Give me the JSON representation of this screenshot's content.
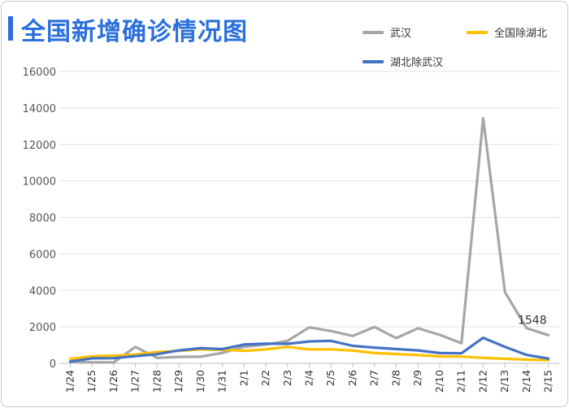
{
  "colors": {
    "title": "#2a6fdb",
    "wuhan": "#a6a6a6",
    "national_ex_hubei": "#ffc000",
    "hubei_ex_wuhan": "#4472c4"
  },
  "chart_data": {
    "type": "line",
    "title": "全国新增确诊情况图",
    "categories": [
      "1/24",
      "1/25",
      "1/26",
      "1/27",
      "1/28",
      "1/29",
      "1/30",
      "1/31",
      "2/1",
      "2/2",
      "2/3",
      "2/4",
      "2/5",
      "2/6",
      "2/7",
      "2/8",
      "2/9",
      "2/10",
      "2/11",
      "2/12",
      "2/13",
      "2/14",
      "2/15"
    ],
    "ylim": [
      0,
      16000
    ],
    "yticks": [
      "0",
      "2000",
      "4000",
      "6000",
      "8000",
      "10000",
      "12000",
      "14000",
      "16000"
    ],
    "series": [
      {
        "name": "武汉",
        "color": "#a6a6a6",
        "values": [
          80,
          50,
          50,
          900,
          300,
          350,
          360,
          570,
          900,
          1030,
          1230,
          1970,
          1770,
          1500,
          1990,
          1380,
          1920,
          1560,
          1100,
          13440,
          3900,
          1920,
          1548
        ]
      },
      {
        "name": "全国除湖北",
        "color": "#ffc000",
        "values": [
          240,
          380,
          420,
          480,
          620,
          680,
          760,
          740,
          680,
          760,
          900,
          760,
          760,
          700,
          560,
          510,
          450,
          380,
          370,
          300,
          250,
          200,
          170
        ]
      },
      {
        "name": "湖北除武汉",
        "color": "#4472c4",
        "values": [
          100,
          270,
          280,
          390,
          500,
          710,
          830,
          780,
          1030,
          1080,
          1070,
          1200,
          1230,
          960,
          860,
          780,
          710,
          560,
          550,
          1400,
          900,
          460,
          260
        ]
      }
    ],
    "annotations": [
      {
        "series": "武汉",
        "category": "2/15",
        "label": "1548"
      }
    ]
  }
}
